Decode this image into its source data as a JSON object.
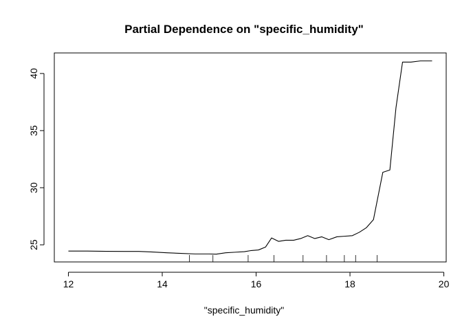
{
  "chart_data": {
    "type": "line",
    "title": "Partial Dependence on \"specific_humidity\"",
    "xlabel": "\"specific_humidity\"",
    "ylabel": "",
    "xlim": [
      11.7,
      20.05
    ],
    "ylim": [
      23.5,
      41.8
    ],
    "x_ticks": [
      12,
      14,
      16,
      18,
      20
    ],
    "y_ticks": [
      25,
      30,
      35,
      40
    ],
    "grid": false,
    "series": [
      {
        "x": [
          12.0,
          12.4,
          12.8,
          13.2,
          13.5,
          13.8,
          14.1,
          14.4,
          14.7,
          15.0,
          15.15,
          15.35,
          15.55,
          15.75,
          15.9,
          16.05,
          16.2,
          16.33,
          16.48,
          16.63,
          16.8,
          16.95,
          17.1,
          17.25,
          17.4,
          17.55,
          17.72,
          17.88,
          18.05,
          18.2,
          18.35,
          18.5,
          18.7,
          18.85,
          18.98,
          19.12,
          19.3,
          19.5,
          19.75
        ],
        "y": [
          24.45,
          24.45,
          24.43,
          24.42,
          24.42,
          24.37,
          24.3,
          24.25,
          24.2,
          24.2,
          24.18,
          24.3,
          24.35,
          24.4,
          24.5,
          24.55,
          24.8,
          25.6,
          25.3,
          25.4,
          25.4,
          25.55,
          25.8,
          25.55,
          25.7,
          25.45,
          25.7,
          25.75,
          25.8,
          26.1,
          26.5,
          27.2,
          31.35,
          31.55,
          37.0,
          41.0,
          41.0,
          41.1,
          41.1
        ]
      }
    ],
    "rug": [
      14.58,
      15.08,
      15.83,
      16.38,
      17.0,
      17.5,
      17.88,
      18.12,
      18.58
    ]
  }
}
